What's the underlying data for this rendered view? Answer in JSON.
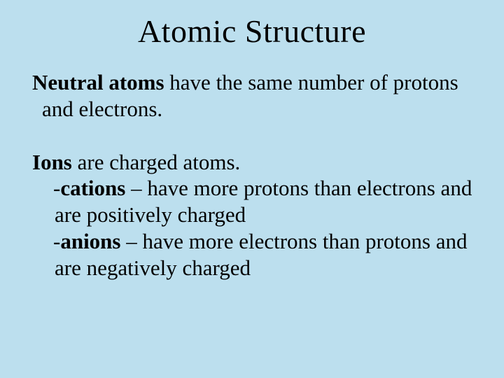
{
  "background_color": "#bcdfee",
  "text_color": "#000000",
  "font_family": "Times New Roman",
  "title": {
    "text": "Atomic Structure",
    "fontsize": 46,
    "align": "center"
  },
  "body": {
    "fontsize": 31,
    "para1": {
      "lead_bold": "Neutral atoms",
      "rest": " have the same number of protons and electrons."
    },
    "para2": {
      "lead_bold": "Ions",
      "rest": " are charged atoms."
    },
    "cations": {
      "prefix": "-",
      "bold": "cations",
      "rest": " – have more protons than electrons and are positively charged"
    },
    "anions": {
      "prefix": "-",
      "bold": "anions",
      "rest": " – have more electrons than protons and are negatively charged"
    }
  }
}
